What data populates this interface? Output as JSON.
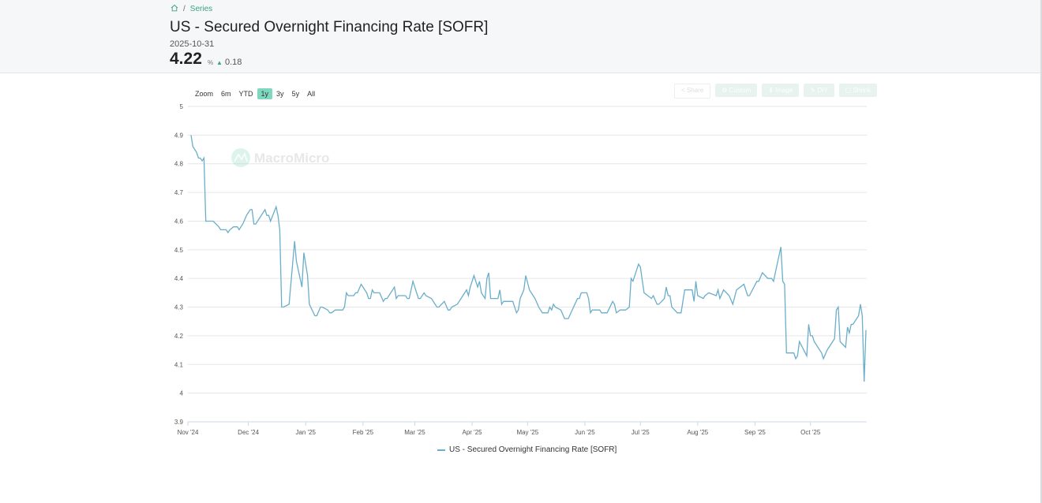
{
  "breadcrumb": {
    "home_icon": "home-icon",
    "current": "Series",
    "separator": "/"
  },
  "header": {
    "title": "US - Secured Overnight Financing Rate [SOFR]",
    "date": "2025-10-31",
    "value": "4.22",
    "unit": "%",
    "change": "0.18",
    "change_icon": "triangle-up-icon"
  },
  "zoom": {
    "label": "Zoom",
    "options": [
      "6m",
      "YTD",
      "1y",
      "3y",
      "5y",
      "All"
    ],
    "selected": "1y"
  },
  "toolbar": {
    "share": "Share",
    "custom": "Custom",
    "image": "Image",
    "diy": "DIY",
    "shrink": "Shrink"
  },
  "watermark": "MacroMicro",
  "colors": {
    "line": "#6aaec9",
    "accent": "#3aa37f",
    "zoom_active": "#7ed8c0"
  },
  "chart_data": {
    "type": "line",
    "title": "",
    "xlabel": "",
    "ylabel": "",
    "xlim": [
      "2024-10-31",
      "2025-10-31"
    ],
    "ylim": [
      3.9,
      5
    ],
    "yticks": [
      "3.9",
      "4",
      "4.1",
      "4.2",
      "4.3",
      "4.4",
      "4.5",
      "4.6",
      "4.7",
      "4.8",
      "4.9",
      "5"
    ],
    "xticks": [
      [
        "2024-11-01",
        "Nov '24"
      ],
      [
        "2024-12-01",
        "Dec '24"
      ],
      [
        "2025-01-01",
        "Jan '25"
      ],
      [
        "2025-02-01",
        "Feb '25"
      ],
      [
        "2025-03-01",
        "Mar '25"
      ],
      [
        "2025-04-01",
        "Apr '25"
      ],
      [
        "2025-05-01",
        "May '25"
      ],
      [
        "2025-06-01",
        "Jun '25"
      ],
      [
        "2025-07-01",
        "Jul '25"
      ],
      [
        "2025-08-01",
        "Aug '25"
      ],
      [
        "2025-09-01",
        "Sep '25"
      ],
      [
        "2025-10-01",
        "Oct '25"
      ]
    ],
    "grid": true,
    "legend": "bottom-center",
    "series": [
      {
        "name": "US - Secured Overnight Financing Rate [SOFR]",
        "points": [
          [
            "2024-10-31",
            4.9
          ],
          [
            "2024-11-01",
            4.86
          ],
          [
            "2024-11-03",
            4.84
          ],
          [
            "2024-11-04",
            4.82
          ],
          [
            "2024-11-05",
            4.82
          ],
          [
            "2024-11-06",
            4.81
          ],
          [
            "2024-11-07",
            4.82
          ],
          [
            "2024-11-08",
            4.6
          ],
          [
            "2024-11-12",
            4.6
          ],
          [
            "2024-11-15",
            4.58
          ],
          [
            "2024-11-16",
            4.57
          ],
          [
            "2024-11-19",
            4.57
          ],
          [
            "2024-11-20",
            4.56
          ],
          [
            "2024-11-21",
            4.57
          ],
          [
            "2024-11-23",
            4.58
          ],
          [
            "2024-11-25",
            4.58
          ],
          [
            "2024-11-26",
            4.57
          ],
          [
            "2024-11-28",
            4.59
          ],
          [
            "2024-11-30",
            4.62
          ],
          [
            "2024-12-02",
            4.64
          ],
          [
            "2024-12-03",
            4.64
          ],
          [
            "2024-12-04",
            4.59
          ],
          [
            "2024-12-05",
            4.59
          ],
          [
            "2024-12-10",
            4.64
          ],
          [
            "2024-12-11",
            4.62
          ],
          [
            "2024-12-12",
            4.62
          ],
          [
            "2024-12-13",
            4.6
          ],
          [
            "2024-12-16",
            4.65
          ],
          [
            "2024-12-17",
            4.62
          ],
          [
            "2024-12-18",
            4.57
          ],
          [
            "2024-12-19",
            4.3
          ],
          [
            "2024-12-20",
            4.3
          ],
          [
            "2024-12-23",
            4.31
          ],
          [
            "2024-12-26",
            4.53
          ],
          [
            "2024-12-27",
            4.46
          ],
          [
            "2024-12-30",
            4.37
          ],
          [
            "2024-12-31",
            4.49
          ],
          [
            "2025-01-02",
            4.41
          ],
          [
            "2025-01-03",
            4.31
          ],
          [
            "2025-01-06",
            4.27
          ],
          [
            "2025-01-07",
            4.27
          ],
          [
            "2025-01-09",
            4.3
          ],
          [
            "2025-01-10",
            4.3
          ],
          [
            "2025-01-13",
            4.29
          ],
          [
            "2025-01-14",
            4.28
          ],
          [
            "2025-01-15",
            4.28
          ],
          [
            "2025-01-17",
            4.29
          ],
          [
            "2025-01-21",
            4.29
          ],
          [
            "2025-01-22",
            4.3
          ],
          [
            "2025-01-23",
            4.35
          ],
          [
            "2025-01-24",
            4.34
          ],
          [
            "2025-01-27",
            4.34
          ],
          [
            "2025-01-28",
            4.35
          ],
          [
            "2025-01-29",
            4.35
          ],
          [
            "2025-01-31",
            4.38
          ],
          [
            "2025-02-03",
            4.35
          ],
          [
            "2025-02-04",
            4.33
          ],
          [
            "2025-02-05",
            4.33
          ],
          [
            "2025-02-06",
            4.36
          ],
          [
            "2025-02-07",
            4.35
          ],
          [
            "2025-02-10",
            4.35
          ],
          [
            "2025-02-12",
            4.32
          ],
          [
            "2025-02-13",
            4.33
          ],
          [
            "2025-02-14",
            4.33
          ],
          [
            "2025-02-18",
            4.37
          ],
          [
            "2025-02-19",
            4.33
          ],
          [
            "2025-02-20",
            4.34
          ],
          [
            "2025-02-24",
            4.34
          ],
          [
            "2025-02-25",
            4.33
          ],
          [
            "2025-02-26",
            4.33
          ],
          [
            "2025-02-28",
            4.39
          ],
          [
            "2025-03-03",
            4.33
          ],
          [
            "2025-03-04",
            4.33
          ],
          [
            "2025-03-06",
            4.35
          ],
          [
            "2025-03-07",
            4.34
          ],
          [
            "2025-03-10",
            4.33
          ],
          [
            "2025-03-13",
            4.3
          ],
          [
            "2025-03-14",
            4.3
          ],
          [
            "2025-03-17",
            4.32
          ],
          [
            "2025-03-19",
            4.29
          ],
          [
            "2025-03-20",
            4.29
          ],
          [
            "2025-03-21",
            4.3
          ],
          [
            "2025-03-24",
            4.31
          ],
          [
            "2025-03-28",
            4.35
          ],
          [
            "2025-03-29",
            4.36
          ],
          [
            "2025-03-30",
            4.34
          ],
          [
            "2025-03-31",
            4.37
          ],
          [
            "2025-04-01",
            4.39
          ],
          [
            "2025-04-02",
            4.41
          ],
          [
            "2025-04-04",
            4.37
          ],
          [
            "2025-04-05",
            4.39
          ],
          [
            "2025-04-06",
            4.35
          ],
          [
            "2025-04-08",
            4.33
          ],
          [
            "2025-04-09",
            4.4
          ],
          [
            "2025-04-10",
            4.42
          ],
          [
            "2025-04-11",
            4.33
          ],
          [
            "2025-04-14",
            4.33
          ],
          [
            "2025-04-15",
            4.33
          ],
          [
            "2025-04-16",
            4.36
          ],
          [
            "2025-04-17",
            4.31
          ],
          [
            "2025-04-18",
            4.32
          ],
          [
            "2025-04-22",
            4.32
          ],
          [
            "2025-04-23",
            4.32
          ],
          [
            "2025-04-25",
            4.28
          ],
          [
            "2025-04-26",
            4.29
          ],
          [
            "2025-04-27",
            4.33
          ],
          [
            "2025-04-29",
            4.36
          ],
          [
            "2025-04-30",
            4.41
          ],
          [
            "2025-05-02",
            4.36
          ],
          [
            "2025-05-05",
            4.33
          ],
          [
            "2025-05-07",
            4.3
          ],
          [
            "2025-05-09",
            4.28
          ],
          [
            "2025-05-12",
            4.28
          ],
          [
            "2025-05-13",
            4.3
          ],
          [
            "2025-05-14",
            4.29
          ],
          [
            "2025-05-15",
            4.31
          ],
          [
            "2025-05-16",
            4.3
          ],
          [
            "2025-05-19",
            4.29
          ],
          [
            "2025-05-21",
            4.26
          ],
          [
            "2025-05-23",
            4.26
          ],
          [
            "2025-05-28",
            4.33
          ],
          [
            "2025-05-29",
            4.33
          ],
          [
            "2025-05-30",
            4.35
          ],
          [
            "2025-06-02",
            4.35
          ],
          [
            "2025-06-03",
            4.33
          ],
          [
            "2025-06-04",
            4.28
          ],
          [
            "2025-06-05",
            4.29
          ],
          [
            "2025-06-09",
            4.29
          ],
          [
            "2025-06-10",
            4.28
          ],
          [
            "2025-06-13",
            4.28
          ],
          [
            "2025-06-16",
            4.32
          ],
          [
            "2025-06-17",
            4.31
          ],
          [
            "2025-06-18",
            4.28
          ],
          [
            "2025-06-20",
            4.29
          ],
          [
            "2025-06-23",
            4.29
          ],
          [
            "2025-06-25",
            4.3
          ],
          [
            "2025-06-26",
            4.4
          ],
          [
            "2025-06-27",
            4.39
          ],
          [
            "2025-06-30",
            4.45
          ],
          [
            "2025-07-01",
            4.44
          ],
          [
            "2025-07-03",
            4.35
          ],
          [
            "2025-07-07",
            4.33
          ],
          [
            "2025-07-08",
            4.34
          ],
          [
            "2025-07-10",
            4.31
          ],
          [
            "2025-07-11",
            4.31
          ],
          [
            "2025-07-14",
            4.33
          ],
          [
            "2025-07-15",
            4.37
          ],
          [
            "2025-07-16",
            4.34
          ],
          [
            "2025-07-17",
            4.34
          ],
          [
            "2025-07-18",
            4.3
          ],
          [
            "2025-07-21",
            4.28
          ],
          [
            "2025-07-23",
            4.28
          ],
          [
            "2025-07-25",
            4.36
          ],
          [
            "2025-07-29",
            4.36
          ],
          [
            "2025-07-30",
            4.32
          ],
          [
            "2025-07-31",
            4.39
          ],
          [
            "2025-08-01",
            4.34
          ],
          [
            "2025-08-04",
            4.33
          ],
          [
            "2025-08-05",
            4.34
          ],
          [
            "2025-08-07",
            4.35
          ],
          [
            "2025-08-11",
            4.34
          ],
          [
            "2025-08-12",
            4.36
          ],
          [
            "2025-08-13",
            4.33
          ],
          [
            "2025-08-15",
            4.36
          ],
          [
            "2025-08-18",
            4.34
          ],
          [
            "2025-08-20",
            4.31
          ],
          [
            "2025-08-22",
            4.36
          ],
          [
            "2025-08-26",
            4.38
          ],
          [
            "2025-08-28",
            4.34
          ],
          [
            "2025-08-29",
            4.34
          ],
          [
            "2025-09-02",
            4.39
          ],
          [
            "2025-09-03",
            4.39
          ],
          [
            "2025-09-05",
            4.42
          ],
          [
            "2025-09-08",
            4.4
          ],
          [
            "2025-09-10",
            4.4
          ],
          [
            "2025-09-11",
            4.39
          ],
          [
            "2025-09-12",
            4.42
          ],
          [
            "2025-09-15",
            4.51
          ],
          [
            "2025-09-16",
            4.39
          ],
          [
            "2025-09-17",
            4.38
          ],
          [
            "2025-09-18",
            4.14
          ],
          [
            "2025-09-22",
            4.14
          ],
          [
            "2025-09-23",
            4.12
          ],
          [
            "2025-09-24",
            4.13
          ],
          [
            "2025-09-25",
            4.18
          ],
          [
            "2025-09-29",
            4.13
          ],
          [
            "2025-09-30",
            4.24
          ],
          [
            "2025-10-01",
            4.2
          ],
          [
            "2025-10-02",
            4.2
          ],
          [
            "2025-10-03",
            4.18
          ],
          [
            "2025-10-07",
            4.14
          ],
          [
            "2025-10-08",
            4.12
          ],
          [
            "2025-10-10",
            4.15
          ],
          [
            "2025-10-14",
            4.19
          ],
          [
            "2025-10-15",
            4.29
          ],
          [
            "2025-10-16",
            4.3
          ],
          [
            "2025-10-17",
            4.18
          ],
          [
            "2025-10-20",
            4.16
          ],
          [
            "2025-10-21",
            4.23
          ],
          [
            "2025-10-22",
            4.21
          ],
          [
            "2025-10-23",
            4.24
          ],
          [
            "2025-10-24",
            4.24
          ],
          [
            "2025-10-27",
            4.27
          ],
          [
            "2025-10-28",
            4.31
          ],
          [
            "2025-10-29",
            4.27
          ],
          [
            "2025-10-30",
            4.04
          ],
          [
            "2025-10-31",
            4.22
          ]
        ]
      }
    ]
  }
}
